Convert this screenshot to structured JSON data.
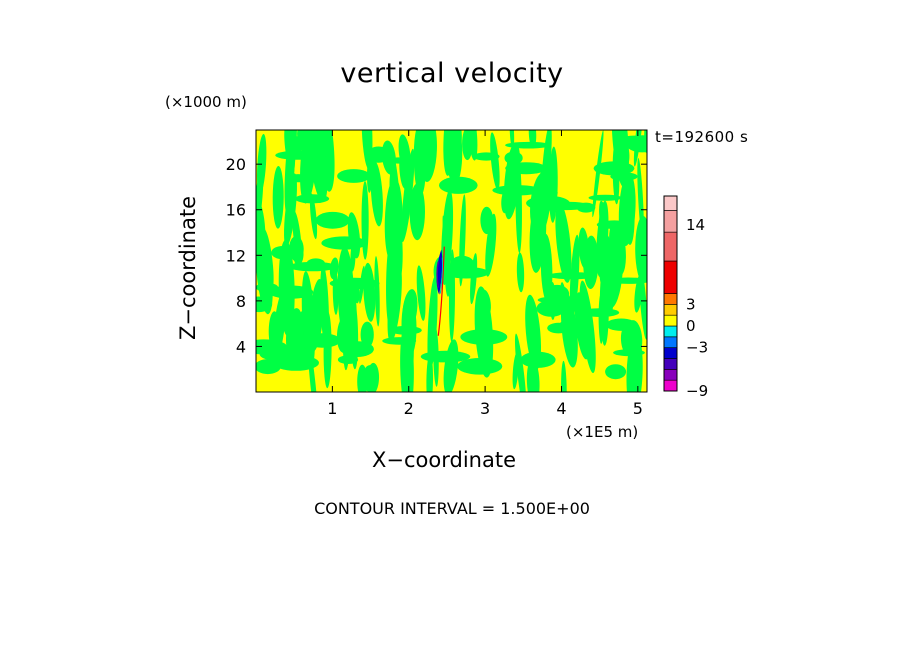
{
  "chart_data": {
    "type": "heatmap",
    "title": "vertical velocity",
    "xlabel": "X−coordinate",
    "ylabel": "Z−coordinate",
    "x_unit": "(×1E5 m)",
    "y_unit": "(×1000 m)",
    "time_label": "t=192600 s",
    "contour_interval_text": "CONTOUR INTERVAL = 1.500E+00",
    "contour_interval": 1.5,
    "xlim": [
      0,
      5.12
    ],
    "ylim": [
      0,
      23
    ],
    "x_ticks": [
      {
        "value": 1,
        "label": "1"
      },
      {
        "value": 2,
        "label": "2"
      },
      {
        "value": 3,
        "label": "3"
      },
      {
        "value": 4,
        "label": "4"
      },
      {
        "value": 5,
        "label": "5"
      }
    ],
    "y_ticks": [
      {
        "value": 4,
        "label": "4"
      },
      {
        "value": 8,
        "label": "8"
      },
      {
        "value": 12,
        "label": "12"
      },
      {
        "value": 16,
        "label": "16"
      },
      {
        "value": 20,
        "label": "20"
      }
    ],
    "field_colors": {
      "background": "#FFFF00",
      "band": "#00FF44"
    },
    "features": [
      {
        "name": "updraft-downdraft-pair",
        "x": 2.4,
        "z_range": [
          4.5,
          12.5
        ],
        "colors": [
          "#0000CC",
          "#5500AA",
          "#FF0000",
          "#00BBBB"
        ]
      }
    ],
    "colorbar": {
      "range": [
        -9,
        18
      ],
      "levels": [
        {
          "from": -9,
          "to": -7.5,
          "color": "#EE00CC"
        },
        {
          "from": -7.5,
          "to": -6,
          "color": "#8800BB"
        },
        {
          "from": -6,
          "to": -4.5,
          "color": "#4400BB"
        },
        {
          "from": -4.5,
          "to": -3,
          "color": "#0000CC"
        },
        {
          "from": -3,
          "to": -1.5,
          "color": "#0077FF"
        },
        {
          "from": -1.5,
          "to": 0,
          "color": "#00EEEE"
        },
        {
          "from": 0,
          "to": 1.5,
          "color": "#FFFF00"
        },
        {
          "from": 1.5,
          "to": 3,
          "color": "#FFCC00"
        },
        {
          "from": 3,
          "to": 4.5,
          "color": "#FF7700"
        },
        {
          "from": 4.5,
          "to": 9,
          "color": "#EE0000"
        },
        {
          "from": 9,
          "to": 13,
          "color": "#EE6666"
        },
        {
          "from": 13,
          "to": 16,
          "color": "#F4A0A0"
        },
        {
          "from": 16,
          "to": 18,
          "color": "#FBC8C8"
        }
      ],
      "tick_labels": [
        {
          "value": 14,
          "label": "14"
        },
        {
          "value": 3,
          "label": "3"
        },
        {
          "value": 0,
          "label": "0"
        },
        {
          "value": -3,
          "label": "−3"
        },
        {
          "value": -9,
          "label": "−9"
        }
      ]
    }
  }
}
